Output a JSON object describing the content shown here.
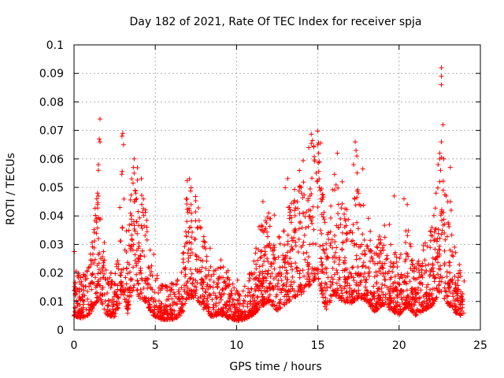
{
  "chart_data": {
    "type": "scatter",
    "title": "Day 182 of 2021, Rate Of TEC Index for receiver spja",
    "xlabel": "GPS time / hours",
    "ylabel": "ROTI / TECUs",
    "xlim": [
      0,
      25
    ],
    "ylim": [
      0,
      0.1
    ],
    "x_ticks": [
      "0",
      "5",
      "10",
      "15",
      "20",
      "25"
    ],
    "y_ticks": [
      "0",
      "0.01",
      "0.02",
      "0.03",
      "0.04",
      "0.05",
      "0.06",
      "0.07",
      "0.08",
      "0.09",
      "0.1"
    ],
    "grid": true,
    "marker": "+",
    "color": "#ff0000",
    "profile": [
      [
        0.0,
        0.011
      ],
      [
        0.5,
        0.009
      ],
      [
        1.0,
        0.012
      ],
      [
        1.3,
        0.02
      ],
      [
        1.6,
        0.025
      ],
      [
        2.0,
        0.011
      ],
      [
        2.5,
        0.01
      ],
      [
        2.8,
        0.02
      ],
      [
        3.0,
        0.03
      ],
      [
        3.3,
        0.013
      ],
      [
        3.7,
        0.035
      ],
      [
        4.0,
        0.025
      ],
      [
        4.4,
        0.022
      ],
      [
        4.8,
        0.012
      ],
      [
        5.3,
        0.008
      ],
      [
        6.0,
        0.008
      ],
      [
        6.6,
        0.01
      ],
      [
        7.0,
        0.025
      ],
      [
        7.5,
        0.025
      ],
      [
        8.0,
        0.016
      ],
      [
        8.5,
        0.01
      ],
      [
        9.0,
        0.012
      ],
      [
        9.5,
        0.009
      ],
      [
        10.0,
        0.007
      ],
      [
        10.5,
        0.008
      ],
      [
        11.0,
        0.011
      ],
      [
        11.5,
        0.018
      ],
      [
        12.0,
        0.022
      ],
      [
        12.5,
        0.015
      ],
      [
        13.0,
        0.02
      ],
      [
        13.5,
        0.025
      ],
      [
        14.0,
        0.028
      ],
      [
        14.5,
        0.035
      ],
      [
        15.0,
        0.042
      ],
      [
        15.5,
        0.015
      ],
      [
        16.0,
        0.028
      ],
      [
        16.5,
        0.022
      ],
      [
        17.0,
        0.02
      ],
      [
        17.5,
        0.025
      ],
      [
        18.0,
        0.022
      ],
      [
        18.5,
        0.014
      ],
      [
        19.0,
        0.02
      ],
      [
        19.5,
        0.015
      ],
      [
        20.0,
        0.012
      ],
      [
        20.5,
        0.018
      ],
      [
        21.0,
        0.011
      ],
      [
        21.5,
        0.015
      ],
      [
        22.0,
        0.018
      ],
      [
        22.5,
        0.03
      ],
      [
        23.0,
        0.02
      ],
      [
        23.5,
        0.013
      ],
      [
        24.0,
        0.01
      ]
    ],
    "spikes": [
      [
        1.6,
        0.074
      ],
      [
        1.55,
        0.067
      ],
      [
        1.6,
        0.066
      ],
      [
        1.5,
        0.058
      ],
      [
        1.5,
        0.056
      ],
      [
        1.45,
        0.048
      ],
      [
        1.5,
        0.047
      ],
      [
        1.4,
        0.046
      ],
      [
        1.45,
        0.044
      ],
      [
        3.0,
        0.069
      ],
      [
        2.95,
        0.068
      ],
      [
        3.05,
        0.065
      ],
      [
        3.7,
        0.06
      ],
      [
        3.65,
        0.057
      ],
      [
        3.7,
        0.055
      ],
      [
        3.8,
        0.048
      ],
      [
        3.85,
        0.046
      ],
      [
        7.1,
        0.053
      ],
      [
        6.9,
        0.046
      ],
      [
        7.2,
        0.044
      ],
      [
        7.1,
        0.042
      ],
      [
        13.9,
        0.05
      ],
      [
        14.0,
        0.048
      ],
      [
        14.4,
        0.046
      ],
      [
        15.0,
        0.065
      ],
      [
        15.05,
        0.062
      ],
      [
        15.1,
        0.059
      ],
      [
        14.9,
        0.055
      ],
      [
        14.95,
        0.052
      ],
      [
        15.1,
        0.05
      ],
      [
        15.2,
        0.046
      ],
      [
        16.2,
        0.062
      ],
      [
        16.5,
        0.052
      ],
      [
        17.3,
        0.066
      ],
      [
        17.35,
        0.063
      ],
      [
        17.4,
        0.061
      ],
      [
        17.2,
        0.058
      ],
      [
        17.5,
        0.048
      ],
      [
        19.7,
        0.047
      ],
      [
        20.3,
        0.046
      ],
      [
        20.5,
        0.044
      ],
      [
        22.6,
        0.092
      ],
      [
        22.6,
        0.089
      ],
      [
        22.6,
        0.086
      ],
      [
        22.7,
        0.072
      ],
      [
        22.6,
        0.066
      ],
      [
        22.5,
        0.062
      ],
      [
        22.5,
        0.06
      ],
      [
        22.4,
        0.058
      ],
      [
        22.55,
        0.056
      ],
      [
        22.75,
        0.06
      ],
      [
        23.15,
        0.057
      ],
      [
        22.5,
        0.052
      ],
      [
        22.9,
        0.047
      ],
      [
        23.0,
        0.045
      ],
      [
        23.2,
        0.042
      ]
    ]
  }
}
